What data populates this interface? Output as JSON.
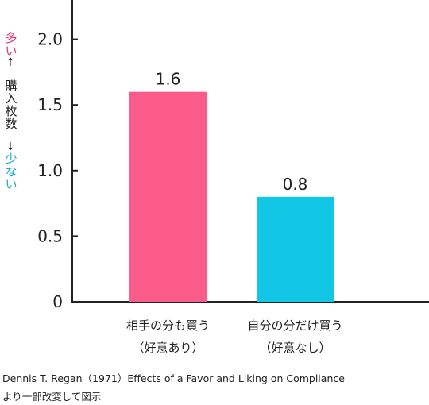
{
  "y_label": {
    "top_word": "多い",
    "top_arrow": "↑",
    "middle": "購入枚数",
    "bottom_arrow": "↓",
    "bottom_word": "少ない",
    "top_color": "#e8336f",
    "bottom_color": "#14a9d6"
  },
  "chart_data": {
    "type": "bar",
    "categories": [
      [
        "相手の分も買う",
        "（好意あり）"
      ],
      [
        "自分の分だけ買う",
        "（好意なし）"
      ]
    ],
    "values": [
      1.6,
      0.8
    ],
    "data_labels": [
      "1.6",
      "0.8"
    ],
    "colors": [
      "#fb5b89",
      "#12c6e6"
    ],
    "yticks": [
      0,
      0.5,
      1.0,
      1.5,
      2.0
    ],
    "ytick_labels": [
      "0",
      "0.5",
      "1.0",
      "1.5",
      "2.0"
    ],
    "ylim": [
      0,
      2.3
    ],
    "grid": false,
    "legend": "none"
  },
  "caption": {
    "line1": "Dennis T. Regan（1971）Effects of a Favor and Liking on Compliance",
    "line2": "より一部改変して図示"
  }
}
